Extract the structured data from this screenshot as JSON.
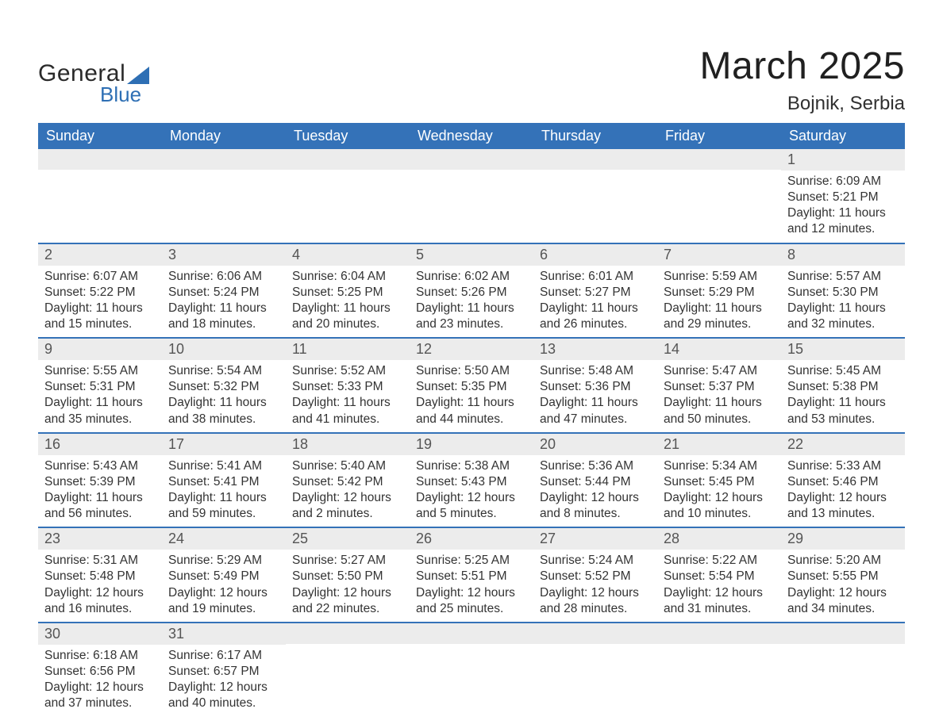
{
  "styling": {
    "header_bg": "#3472b8",
    "header_text_color": "#ffffff",
    "daynum_bg": "#ececec",
    "daynum_text_color": "#555555",
    "body_text_color": "#333333",
    "row_border_color": "#3472b8",
    "page_bg": "#ffffff",
    "logo_accent": "#2e6fb4",
    "logo_text_color": "#2a2a2a",
    "title_color": "#202020",
    "month_title_fontsize": 48,
    "location_fontsize": 24,
    "weekday_fontsize": 18,
    "body_fontsize": 15.5
  },
  "logo": {
    "text_general": "General",
    "text_blue": "Blue"
  },
  "title": {
    "month": "March 2025",
    "location": "Bojnik, Serbia"
  },
  "weekdays": [
    "Sunday",
    "Monday",
    "Tuesday",
    "Wednesday",
    "Thursday",
    "Friday",
    "Saturday"
  ],
  "weeks": [
    [
      null,
      null,
      null,
      null,
      null,
      null,
      {
        "num": "1",
        "sunrise": "Sunrise: 6:09 AM",
        "sunset": "Sunset: 5:21 PM",
        "day1": "Daylight: 11 hours",
        "day2": "and 12 minutes."
      }
    ],
    [
      {
        "num": "2",
        "sunrise": "Sunrise: 6:07 AM",
        "sunset": "Sunset: 5:22 PM",
        "day1": "Daylight: 11 hours",
        "day2": "and 15 minutes."
      },
      {
        "num": "3",
        "sunrise": "Sunrise: 6:06 AM",
        "sunset": "Sunset: 5:24 PM",
        "day1": "Daylight: 11 hours",
        "day2": "and 18 minutes."
      },
      {
        "num": "4",
        "sunrise": "Sunrise: 6:04 AM",
        "sunset": "Sunset: 5:25 PM",
        "day1": "Daylight: 11 hours",
        "day2": "and 20 minutes."
      },
      {
        "num": "5",
        "sunrise": "Sunrise: 6:02 AM",
        "sunset": "Sunset: 5:26 PM",
        "day1": "Daylight: 11 hours",
        "day2": "and 23 minutes."
      },
      {
        "num": "6",
        "sunrise": "Sunrise: 6:01 AM",
        "sunset": "Sunset: 5:27 PM",
        "day1": "Daylight: 11 hours",
        "day2": "and 26 minutes."
      },
      {
        "num": "7",
        "sunrise": "Sunrise: 5:59 AM",
        "sunset": "Sunset: 5:29 PM",
        "day1": "Daylight: 11 hours",
        "day2": "and 29 minutes."
      },
      {
        "num": "8",
        "sunrise": "Sunrise: 5:57 AM",
        "sunset": "Sunset: 5:30 PM",
        "day1": "Daylight: 11 hours",
        "day2": "and 32 minutes."
      }
    ],
    [
      {
        "num": "9",
        "sunrise": "Sunrise: 5:55 AM",
        "sunset": "Sunset: 5:31 PM",
        "day1": "Daylight: 11 hours",
        "day2": "and 35 minutes."
      },
      {
        "num": "10",
        "sunrise": "Sunrise: 5:54 AM",
        "sunset": "Sunset: 5:32 PM",
        "day1": "Daylight: 11 hours",
        "day2": "and 38 minutes."
      },
      {
        "num": "11",
        "sunrise": "Sunrise: 5:52 AM",
        "sunset": "Sunset: 5:33 PM",
        "day1": "Daylight: 11 hours",
        "day2": "and 41 minutes."
      },
      {
        "num": "12",
        "sunrise": "Sunrise: 5:50 AM",
        "sunset": "Sunset: 5:35 PM",
        "day1": "Daylight: 11 hours",
        "day2": "and 44 minutes."
      },
      {
        "num": "13",
        "sunrise": "Sunrise: 5:48 AM",
        "sunset": "Sunset: 5:36 PM",
        "day1": "Daylight: 11 hours",
        "day2": "and 47 minutes."
      },
      {
        "num": "14",
        "sunrise": "Sunrise: 5:47 AM",
        "sunset": "Sunset: 5:37 PM",
        "day1": "Daylight: 11 hours",
        "day2": "and 50 minutes."
      },
      {
        "num": "15",
        "sunrise": "Sunrise: 5:45 AM",
        "sunset": "Sunset: 5:38 PM",
        "day1": "Daylight: 11 hours",
        "day2": "and 53 minutes."
      }
    ],
    [
      {
        "num": "16",
        "sunrise": "Sunrise: 5:43 AM",
        "sunset": "Sunset: 5:39 PM",
        "day1": "Daylight: 11 hours",
        "day2": "and 56 minutes."
      },
      {
        "num": "17",
        "sunrise": "Sunrise: 5:41 AM",
        "sunset": "Sunset: 5:41 PM",
        "day1": "Daylight: 11 hours",
        "day2": "and 59 minutes."
      },
      {
        "num": "18",
        "sunrise": "Sunrise: 5:40 AM",
        "sunset": "Sunset: 5:42 PM",
        "day1": "Daylight: 12 hours",
        "day2": "and 2 minutes."
      },
      {
        "num": "19",
        "sunrise": "Sunrise: 5:38 AM",
        "sunset": "Sunset: 5:43 PM",
        "day1": "Daylight: 12 hours",
        "day2": "and 5 minutes."
      },
      {
        "num": "20",
        "sunrise": "Sunrise: 5:36 AM",
        "sunset": "Sunset: 5:44 PM",
        "day1": "Daylight: 12 hours",
        "day2": "and 8 minutes."
      },
      {
        "num": "21",
        "sunrise": "Sunrise: 5:34 AM",
        "sunset": "Sunset: 5:45 PM",
        "day1": "Daylight: 12 hours",
        "day2": "and 10 minutes."
      },
      {
        "num": "22",
        "sunrise": "Sunrise: 5:33 AM",
        "sunset": "Sunset: 5:46 PM",
        "day1": "Daylight: 12 hours",
        "day2": "and 13 minutes."
      }
    ],
    [
      {
        "num": "23",
        "sunrise": "Sunrise: 5:31 AM",
        "sunset": "Sunset: 5:48 PM",
        "day1": "Daylight: 12 hours",
        "day2": "and 16 minutes."
      },
      {
        "num": "24",
        "sunrise": "Sunrise: 5:29 AM",
        "sunset": "Sunset: 5:49 PM",
        "day1": "Daylight: 12 hours",
        "day2": "and 19 minutes."
      },
      {
        "num": "25",
        "sunrise": "Sunrise: 5:27 AM",
        "sunset": "Sunset: 5:50 PM",
        "day1": "Daylight: 12 hours",
        "day2": "and 22 minutes."
      },
      {
        "num": "26",
        "sunrise": "Sunrise: 5:25 AM",
        "sunset": "Sunset: 5:51 PM",
        "day1": "Daylight: 12 hours",
        "day2": "and 25 minutes."
      },
      {
        "num": "27",
        "sunrise": "Sunrise: 5:24 AM",
        "sunset": "Sunset: 5:52 PM",
        "day1": "Daylight: 12 hours",
        "day2": "and 28 minutes."
      },
      {
        "num": "28",
        "sunrise": "Sunrise: 5:22 AM",
        "sunset": "Sunset: 5:54 PM",
        "day1": "Daylight: 12 hours",
        "day2": "and 31 minutes."
      },
      {
        "num": "29",
        "sunrise": "Sunrise: 5:20 AM",
        "sunset": "Sunset: 5:55 PM",
        "day1": "Daylight: 12 hours",
        "day2": "and 34 minutes."
      }
    ],
    [
      {
        "num": "30",
        "sunrise": "Sunrise: 6:18 AM",
        "sunset": "Sunset: 6:56 PM",
        "day1": "Daylight: 12 hours",
        "day2": "and 37 minutes."
      },
      {
        "num": "31",
        "sunrise": "Sunrise: 6:17 AM",
        "sunset": "Sunset: 6:57 PM",
        "day1": "Daylight: 12 hours",
        "day2": "and 40 minutes."
      },
      null,
      null,
      null,
      null,
      null
    ]
  ]
}
